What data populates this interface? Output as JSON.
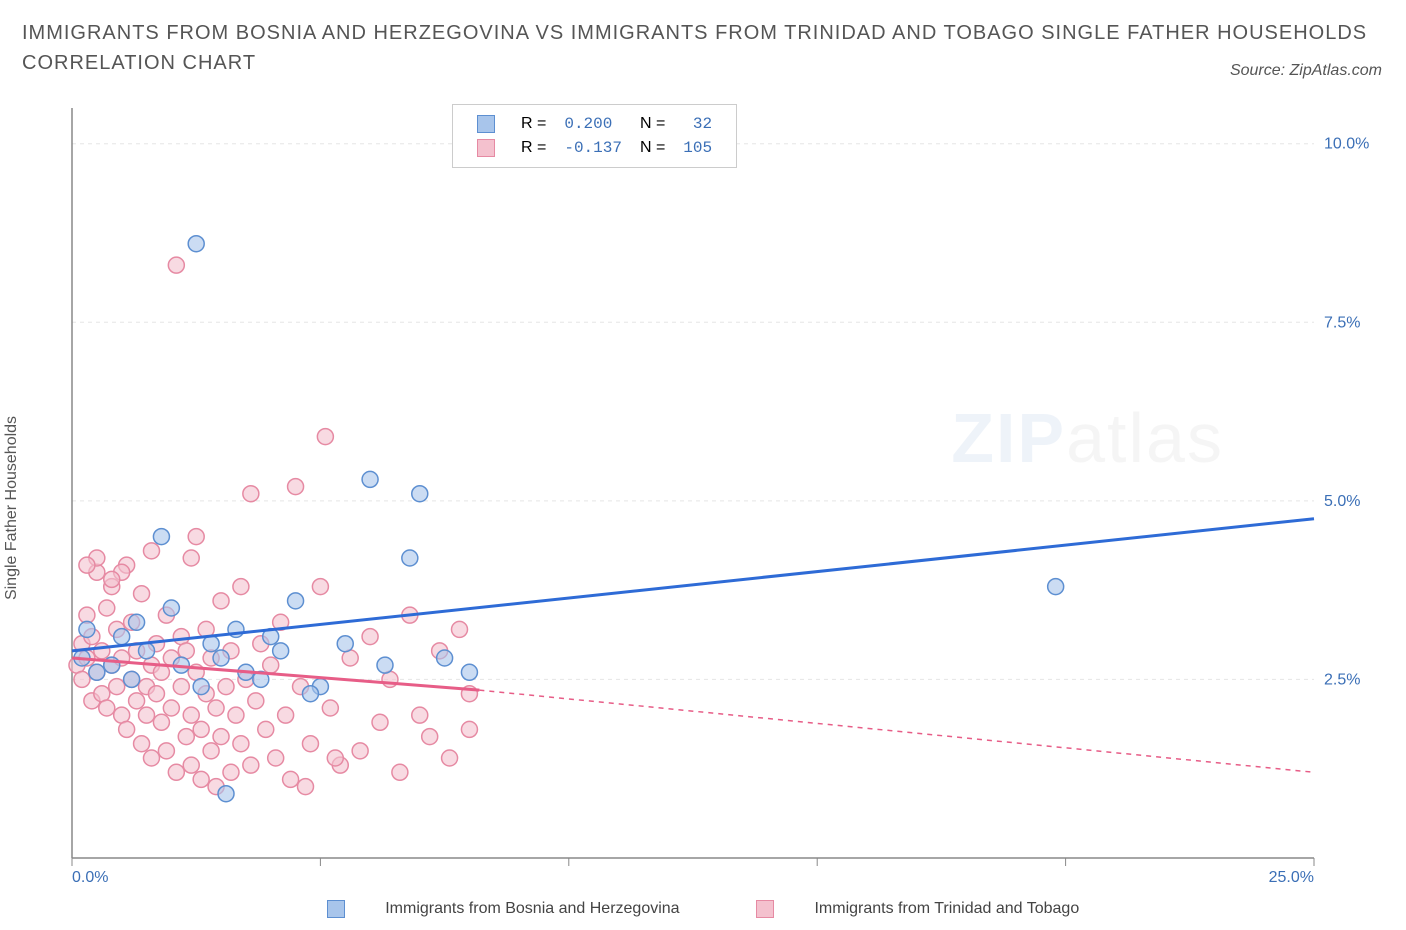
{
  "title_line1": "IMMIGRANTS FROM BOSNIA AND HERZEGOVINA VS IMMIGRANTS FROM TRINIDAD AND TOBAGO SINGLE FATHER HOUSEHOLDS",
  "title_line2": "CORRELATION CHART",
  "source": "Source: ZipAtlas.com",
  "ylabel": "Single Father Households",
  "series": {
    "a": {
      "name": "Immigrants from Bosnia and Herzegovina",
      "color_fill": "#a8c5eb",
      "color_stroke": "#5d8fd1",
      "line_color": "#2e6bd6",
      "R": "0.200",
      "N": "32",
      "trend": {
        "x1": 0,
        "y1": 2.9,
        "x2": 25,
        "y2": 4.75
      },
      "points": [
        [
          0.2,
          2.8
        ],
        [
          0.3,
          3.2
        ],
        [
          0.5,
          2.6
        ],
        [
          0.8,
          2.7
        ],
        [
          1.0,
          3.1
        ],
        [
          1.2,
          2.5
        ],
        [
          1.3,
          3.3
        ],
        [
          1.5,
          2.9
        ],
        [
          1.8,
          4.5
        ],
        [
          2.0,
          3.5
        ],
        [
          2.2,
          2.7
        ],
        [
          2.5,
          8.6
        ],
        [
          2.6,
          2.4
        ],
        [
          2.8,
          3.0
        ],
        [
          3.0,
          2.8
        ],
        [
          3.1,
          0.9
        ],
        [
          3.3,
          3.2
        ],
        [
          3.5,
          2.6
        ],
        [
          4.0,
          3.1
        ],
        [
          4.2,
          2.9
        ],
        [
          4.5,
          3.6
        ],
        [
          5.0,
          2.4
        ],
        [
          5.5,
          3.0
        ],
        [
          6.0,
          5.3
        ],
        [
          6.3,
          2.7
        ],
        [
          6.8,
          4.2
        ],
        [
          7.0,
          5.1
        ],
        [
          7.5,
          2.8
        ],
        [
          8.0,
          2.6
        ],
        [
          19.8,
          3.8
        ],
        [
          3.8,
          2.5
        ],
        [
          4.8,
          2.3
        ]
      ]
    },
    "b": {
      "name": "Immigrants from Trinidad and Tobago",
      "color_fill": "#f4c1ce",
      "color_stroke": "#e68aa3",
      "line_color": "#e75d87",
      "R": "-0.137",
      "N": "105",
      "trend_solid": {
        "x1": 0,
        "y1": 2.8,
        "x2": 8.2,
        "y2": 2.35
      },
      "trend_dash": {
        "x1": 8.2,
        "y1": 2.35,
        "x2": 25,
        "y2": 1.2
      },
      "points": [
        [
          0.1,
          2.7
        ],
        [
          0.2,
          3.0
        ],
        [
          0.2,
          2.5
        ],
        [
          0.3,
          2.8
        ],
        [
          0.3,
          3.4
        ],
        [
          0.4,
          2.2
        ],
        [
          0.4,
          3.1
        ],
        [
          0.5,
          2.6
        ],
        [
          0.5,
          4.0
        ],
        [
          0.6,
          2.3
        ],
        [
          0.6,
          2.9
        ],
        [
          0.7,
          3.5
        ],
        [
          0.7,
          2.1
        ],
        [
          0.8,
          2.7
        ],
        [
          0.8,
          3.8
        ],
        [
          0.9,
          2.4
        ],
        [
          0.9,
          3.2
        ],
        [
          1.0,
          2.0
        ],
        [
          1.0,
          2.8
        ],
        [
          1.1,
          4.1
        ],
        [
          1.1,
          1.8
        ],
        [
          1.2,
          2.5
        ],
        [
          1.2,
          3.3
        ],
        [
          1.3,
          2.2
        ],
        [
          1.3,
          2.9
        ],
        [
          1.4,
          1.6
        ],
        [
          1.4,
          3.7
        ],
        [
          1.5,
          2.4
        ],
        [
          1.5,
          2.0
        ],
        [
          1.6,
          2.7
        ],
        [
          1.6,
          1.4
        ],
        [
          1.7,
          3.0
        ],
        [
          1.7,
          2.3
        ],
        [
          1.8,
          1.9
        ],
        [
          1.8,
          2.6
        ],
        [
          1.9,
          3.4
        ],
        [
          1.9,
          1.5
        ],
        [
          2.0,
          2.8
        ],
        [
          2.0,
          2.1
        ],
        [
          2.1,
          1.2
        ],
        [
          2.1,
          8.3
        ],
        [
          2.2,
          2.4
        ],
        [
          2.2,
          3.1
        ],
        [
          2.3,
          1.7
        ],
        [
          2.3,
          2.9
        ],
        [
          2.4,
          2.0
        ],
        [
          2.4,
          1.3
        ],
        [
          2.5,
          4.5
        ],
        [
          2.5,
          2.6
        ],
        [
          2.6,
          1.8
        ],
        [
          2.6,
          1.1
        ],
        [
          2.7,
          2.3
        ],
        [
          2.7,
          3.2
        ],
        [
          2.8,
          1.5
        ],
        [
          2.8,
          2.8
        ],
        [
          2.9,
          1.0
        ],
        [
          2.9,
          2.1
        ],
        [
          3.0,
          3.6
        ],
        [
          3.0,
          1.7
        ],
        [
          3.1,
          2.4
        ],
        [
          3.2,
          1.2
        ],
        [
          3.2,
          2.9
        ],
        [
          3.3,
          2.0
        ],
        [
          3.4,
          1.6
        ],
        [
          3.4,
          3.8
        ],
        [
          3.5,
          2.5
        ],
        [
          3.6,
          1.3
        ],
        [
          3.7,
          2.2
        ],
        [
          3.8,
          3.0
        ],
        [
          3.9,
          1.8
        ],
        [
          4.0,
          2.7
        ],
        [
          4.1,
          1.4
        ],
        [
          4.2,
          3.3
        ],
        [
          4.3,
          2.0
        ],
        [
          4.4,
          1.1
        ],
        [
          4.5,
          5.2
        ],
        [
          4.6,
          2.4
        ],
        [
          4.8,
          1.6
        ],
        [
          5.0,
          3.8
        ],
        [
          5.1,
          5.9
        ],
        [
          5.2,
          2.1
        ],
        [
          5.4,
          1.3
        ],
        [
          5.6,
          2.8
        ],
        [
          5.8,
          1.5
        ],
        [
          6.0,
          3.1
        ],
        [
          6.2,
          1.9
        ],
        [
          6.4,
          2.5
        ],
        [
          6.6,
          1.2
        ],
        [
          6.8,
          3.4
        ],
        [
          7.0,
          2.0
        ],
        [
          7.2,
          1.7
        ],
        [
          7.4,
          2.9
        ],
        [
          7.6,
          1.4
        ],
        [
          7.8,
          3.2
        ],
        [
          8.0,
          2.3
        ],
        [
          8.0,
          1.8
        ],
        [
          4.7,
          1.0
        ],
        [
          5.3,
          1.4
        ],
        [
          3.6,
          5.1
        ],
        [
          2.4,
          4.2
        ],
        [
          1.6,
          4.3
        ],
        [
          0.5,
          4.2
        ],
        [
          1.0,
          4.0
        ],
        [
          0.3,
          4.1
        ],
        [
          0.8,
          3.9
        ]
      ]
    }
  },
  "axes": {
    "xlim": [
      0,
      25
    ],
    "ylim": [
      0,
      10.5
    ],
    "x_ticks": [
      0,
      5,
      10,
      15,
      20,
      25
    ],
    "x_tick_labels": [
      "0.0%",
      "",
      "",
      "",
      "",
      "25.0%"
    ],
    "y_ticks": [
      2.5,
      5.0,
      7.5,
      10.0
    ],
    "y_tick_labels": [
      "2.5%",
      "5.0%",
      "7.5%",
      "10.0%"
    ],
    "grid_color": "#e5e5e5",
    "axis_color": "#888",
    "tick_label_color": "#3b6fb6"
  },
  "legend_labels": {
    "R": "R =",
    "N": "N ="
  },
  "watermark": {
    "zip": "ZIP",
    "atlas": "atlas"
  }
}
